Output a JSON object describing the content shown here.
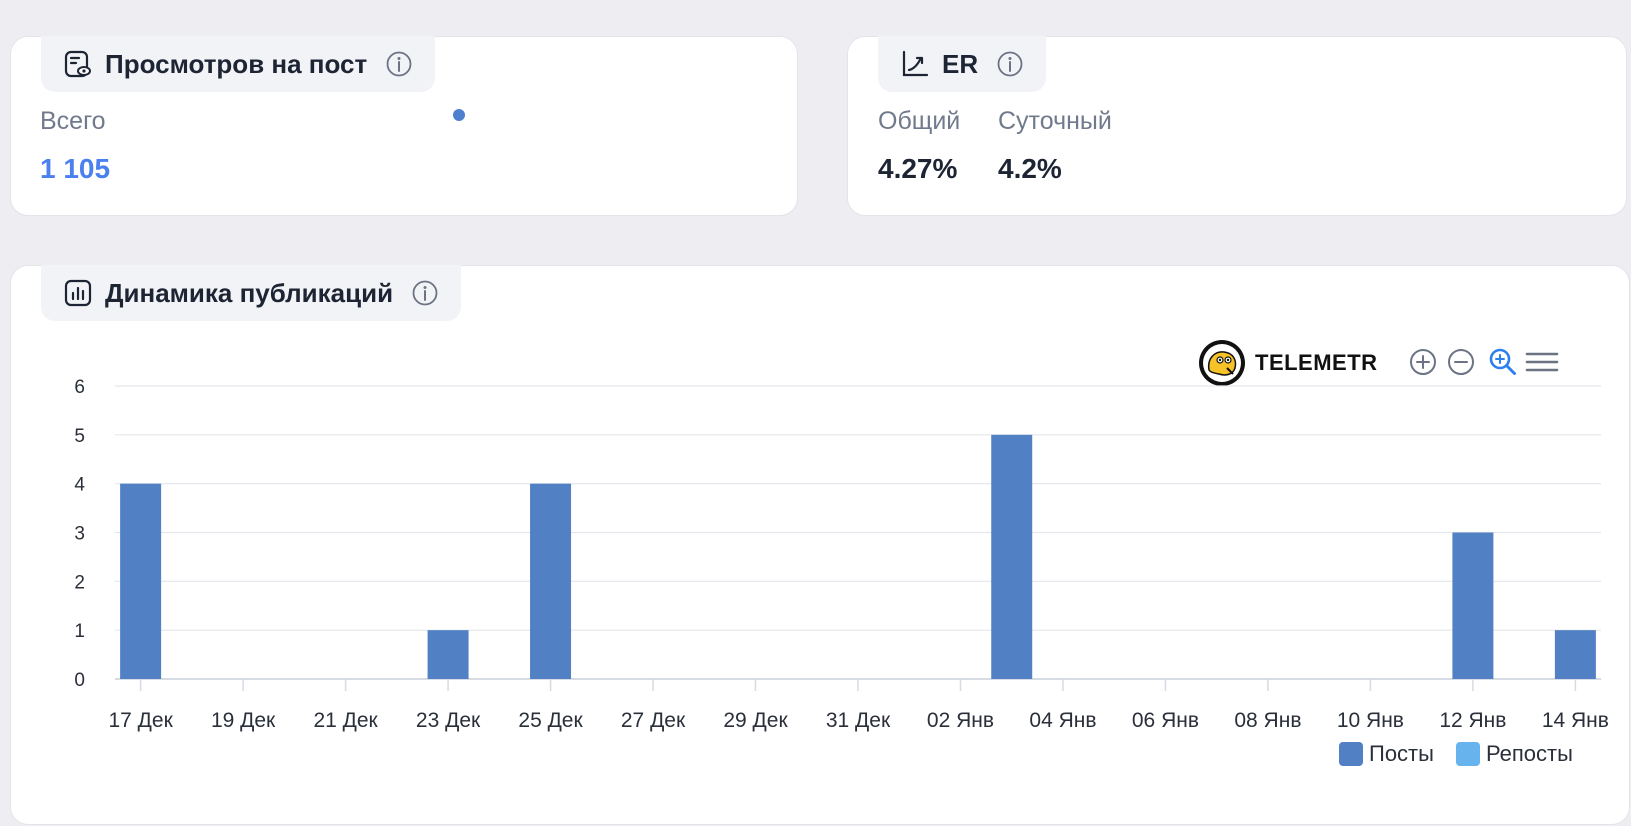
{
  "views_card": {
    "title": "Просмотров на пост",
    "label": "Всего",
    "value": "1 105"
  },
  "er_card": {
    "title": "ER",
    "total_label": "Общий",
    "total_value": "4.27%",
    "daily_label": "Суточный",
    "daily_value": "4.2%"
  },
  "dynamics_card": {
    "title": "Динамика публикаций",
    "brand": "TELEMETR"
  },
  "colors": {
    "accent": "#4a80f0",
    "posts": "#5181c4",
    "reposts": "#67b3ee"
  },
  "chart_data": {
    "type": "bar",
    "x": [
      "17 Дек",
      "18 Дек",
      "19 Дек",
      "20 Дек",
      "21 Дек",
      "22 Дек",
      "23 Дек",
      "24 Дек",
      "25 Дек",
      "26 Дек",
      "27 Дек",
      "28 Дек",
      "29 Дек",
      "30 Дек",
      "31 Дек",
      "01 Янв",
      "02 Янв",
      "03 Янв",
      "04 Янв",
      "05 Янв",
      "06 Янв",
      "07 Янв",
      "08 Янв",
      "09 Янв",
      "10 Янв",
      "11 Янв",
      "12 Янв",
      "13 Янв",
      "14 Янв"
    ],
    "tick_labels": [
      "17 Дек",
      "19 Дек",
      "21 Дек",
      "23 Дек",
      "25 Дек",
      "27 Дек",
      "29 Дек",
      "31 Дек",
      "02 Янв",
      "04 Янв",
      "06 Янв",
      "08 Янв",
      "10 Янв",
      "12 Янв",
      "14 Янв"
    ],
    "series": [
      {
        "name": "Посты",
        "values": [
          4,
          0,
          0,
          0,
          0,
          0,
          1,
          0,
          4,
          0,
          0,
          0,
          0,
          0,
          0,
          0,
          0,
          5,
          0,
          0,
          0,
          0,
          0,
          0,
          0,
          0,
          3,
          0,
          1
        ]
      },
      {
        "name": "Репосты",
        "values": [
          0,
          0,
          0,
          0,
          0,
          0,
          0,
          0,
          0,
          0,
          0,
          0,
          0,
          0,
          0,
          0,
          0,
          0,
          0,
          0,
          0,
          0,
          0,
          0,
          0,
          0,
          0,
          0,
          0
        ]
      }
    ],
    "ylim": [
      0,
      6
    ],
    "yticks": [
      0,
      1,
      2,
      3,
      4,
      5,
      6
    ],
    "grid": true,
    "legend": "bottom-right"
  }
}
